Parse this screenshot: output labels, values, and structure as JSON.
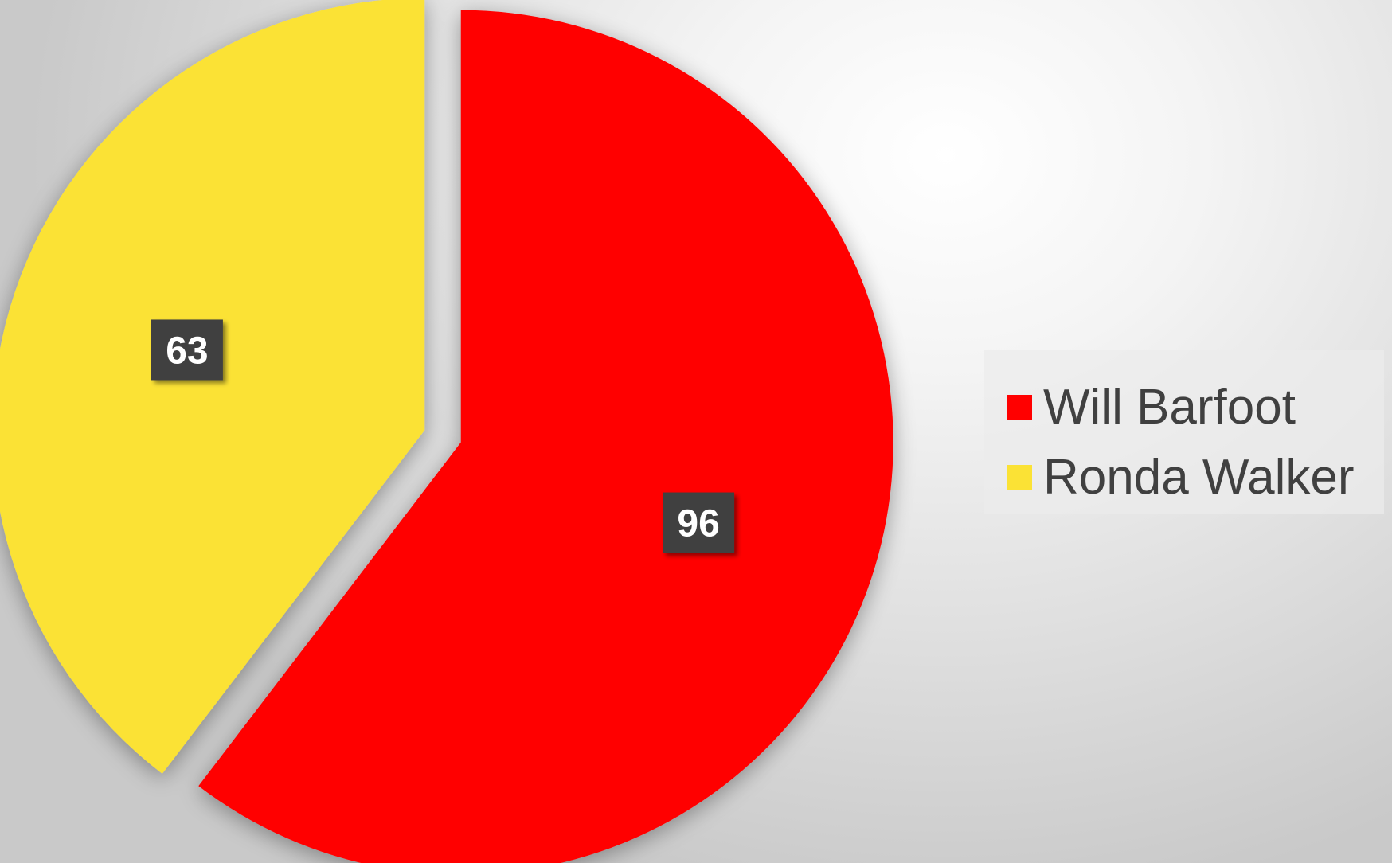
{
  "chart_data": {
    "type": "pie",
    "categories": [
      "Will Barfoot",
      "Ronda Walker"
    ],
    "values": [
      96,
      63
    ],
    "colors": [
      "#ff0000",
      "#fbe235"
    ],
    "data_labels": [
      "96",
      "63"
    ],
    "legend_position": "right",
    "title": "",
    "start_angle": "top, clockwise",
    "exploded": true
  },
  "legend": {
    "items": [
      {
        "label": "Will Barfoot",
        "color": "#ff0000"
      },
      {
        "label": "Ronda Walker",
        "color": "#fbe235"
      }
    ]
  }
}
